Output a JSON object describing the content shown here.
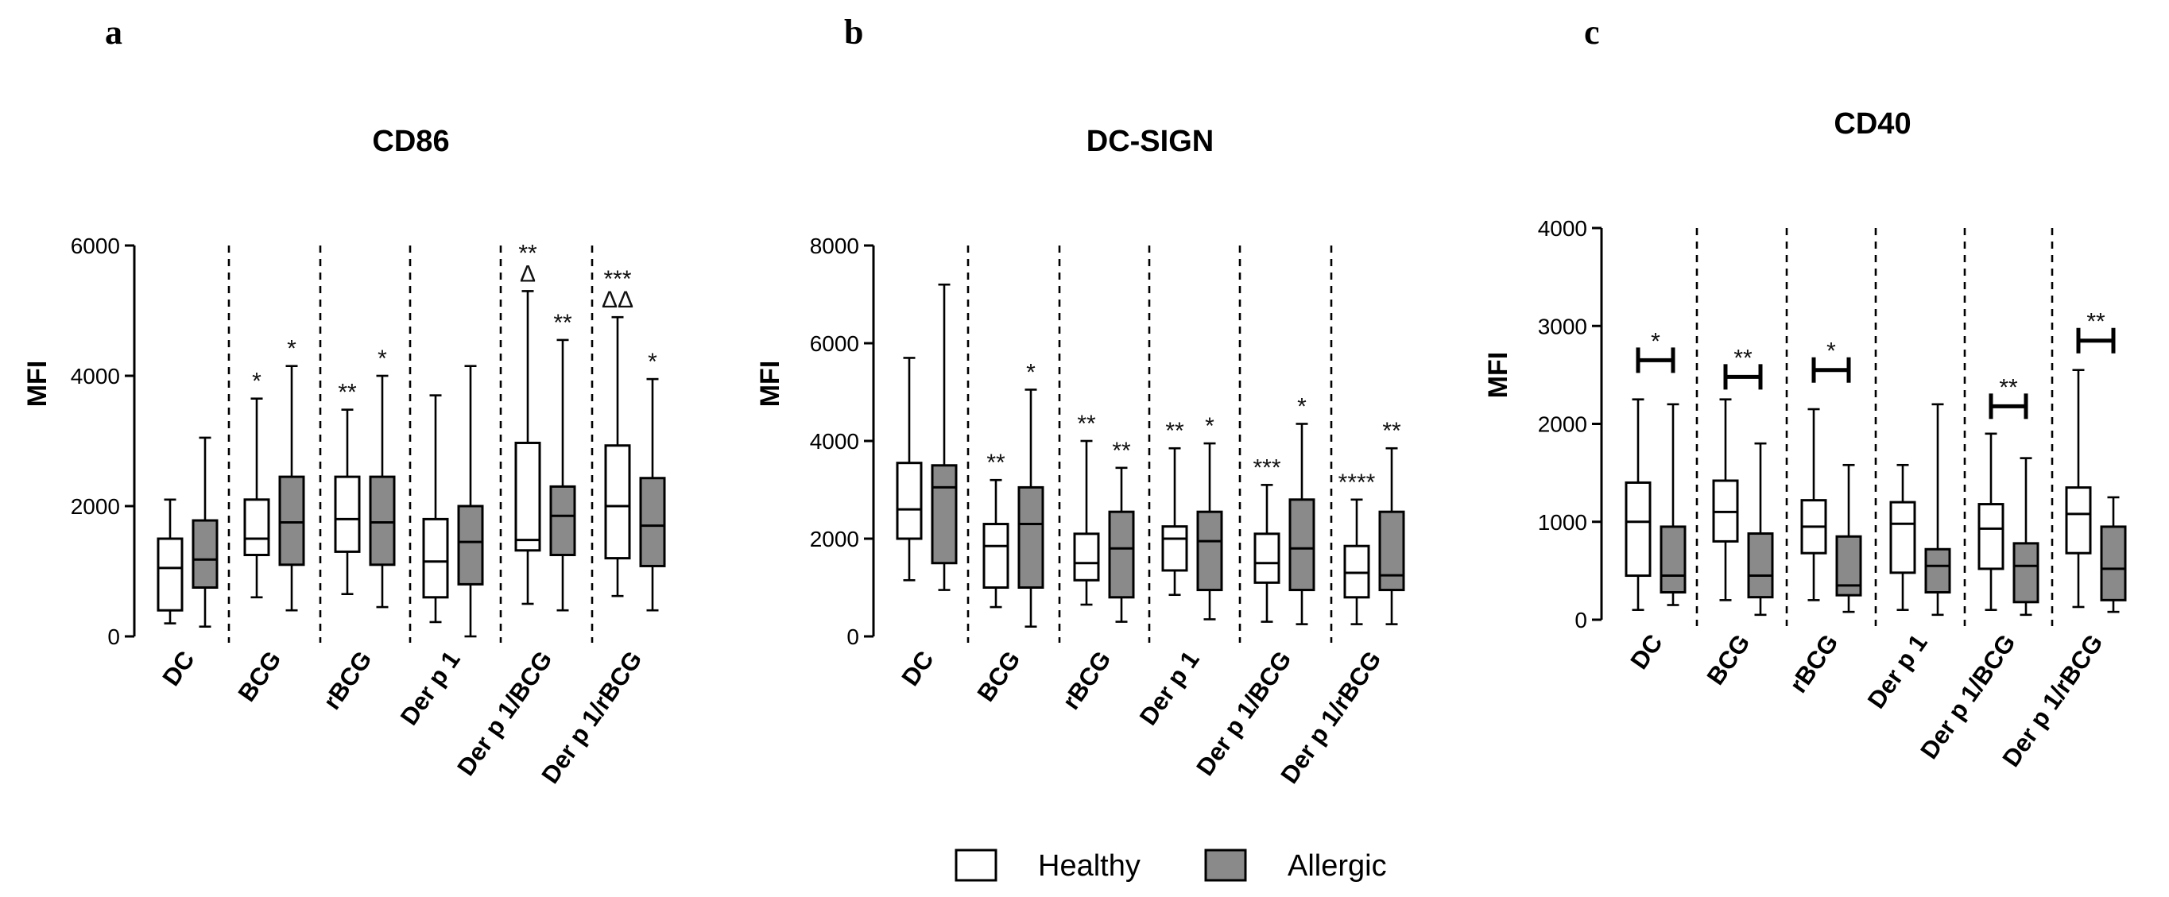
{
  "colors": {
    "healthy": "#ffffff",
    "allergic": "#8a8a8a",
    "stroke": "#000000"
  },
  "legend": [
    {
      "label": "Healthy",
      "color": "#ffffff"
    },
    {
      "label": "Allergic",
      "color": "#8a8a8a"
    }
  ],
  "chart_data": [
    {
      "type": "box",
      "panel": "a",
      "title": "CD86",
      "ylabel": "MFI",
      "ylim": [
        0,
        6000
      ],
      "yticks": [
        0,
        2000,
        4000,
        6000
      ],
      "categories": [
        "DC",
        "BCG",
        "rBCG",
        "Der p 1",
        "Der p 1/BCG",
        "Der p 1/rBCG"
      ],
      "series": [
        {
          "name": "Healthy",
          "boxes": [
            {
              "min": 200,
              "q1": 400,
              "median": 1050,
              "q3": 1500,
              "max": 2100,
              "sig": ""
            },
            {
              "min": 600,
              "q1": 1250,
              "median": 1500,
              "q3": 2100,
              "max": 3650,
              "sig": "*"
            },
            {
              "min": 650,
              "q1": 1300,
              "median": 1800,
              "q3": 2450,
              "max": 3480,
              "sig": "**"
            },
            {
              "min": 220,
              "q1": 600,
              "median": 1150,
              "q3": 1800,
              "max": 3700,
              "sig": ""
            },
            {
              "min": 500,
              "q1": 1320,
              "median": 1480,
              "q3": 2970,
              "max": 5300,
              "sig": "**\nΔ"
            },
            {
              "min": 620,
              "q1": 1200,
              "median": 2000,
              "q3": 2930,
              "max": 4900,
              "sig": "***\nΔΔ"
            }
          ]
        },
        {
          "name": "Allergic",
          "boxes": [
            {
              "min": 150,
              "q1": 750,
              "median": 1180,
              "q3": 1780,
              "max": 3050,
              "sig": ""
            },
            {
              "min": 400,
              "q1": 1100,
              "median": 1750,
              "q3": 2450,
              "max": 4150,
              "sig": "*"
            },
            {
              "min": 450,
              "q1": 1100,
              "median": 1750,
              "q3": 2450,
              "max": 4000,
              "sig": "*"
            },
            {
              "min": 0,
              "q1": 800,
              "median": 1450,
              "q3": 2000,
              "max": 4150,
              "sig": ""
            },
            {
              "min": 400,
              "q1": 1250,
              "median": 1850,
              "q3": 2300,
              "max": 4550,
              "sig": "**"
            },
            {
              "min": 400,
              "q1": 1080,
              "median": 1700,
              "q3": 2430,
              "max": 3950,
              "sig": "*"
            }
          ]
        }
      ]
    },
    {
      "type": "box",
      "panel": "b",
      "title": "DC-SIGN",
      "ylabel": "MFI",
      "ylim": [
        0,
        8000
      ],
      "yticks": [
        0,
        2000,
        4000,
        6000,
        8000
      ],
      "categories": [
        "DC",
        "BCG",
        "rBCG",
        "Der p 1",
        "Der p 1/BCG",
        "Der p 1/rBCG"
      ],
      "series": [
        {
          "name": "Healthy",
          "boxes": [
            {
              "min": 1150,
              "q1": 2000,
              "median": 2600,
              "q3": 3550,
              "max": 5700,
              "sig": ""
            },
            {
              "min": 600,
              "q1": 1000,
              "median": 1850,
              "q3": 2300,
              "max": 3200,
              "sig": "**"
            },
            {
              "min": 650,
              "q1": 1150,
              "median": 1500,
              "q3": 2100,
              "max": 4000,
              "sig": "**"
            },
            {
              "min": 850,
              "q1": 1350,
              "median": 2000,
              "q3": 2250,
              "max": 3850,
              "sig": "**"
            },
            {
              "min": 300,
              "q1": 1100,
              "median": 1500,
              "q3": 2100,
              "max": 3100,
              "sig": "***"
            },
            {
              "min": 250,
              "q1": 800,
              "median": 1300,
              "q3": 1850,
              "max": 2800,
              "sig": "****"
            }
          ]
        },
        {
          "name": "Allergic",
          "boxes": [
            {
              "min": 950,
              "q1": 1500,
              "median": 3050,
              "q3": 3500,
              "max": 7200,
              "sig": ""
            },
            {
              "min": 200,
              "q1": 1000,
              "median": 2300,
              "q3": 3050,
              "max": 5050,
              "sig": "*"
            },
            {
              "min": 300,
              "q1": 800,
              "median": 1800,
              "q3": 2550,
              "max": 3450,
              "sig": "**"
            },
            {
              "min": 350,
              "q1": 950,
              "median": 1950,
              "q3": 2550,
              "max": 3950,
              "sig": "*"
            },
            {
              "min": 250,
              "q1": 950,
              "median": 1800,
              "q3": 2800,
              "max": 4350,
              "sig": "*"
            },
            {
              "min": 250,
              "q1": 950,
              "median": 1250,
              "q3": 2550,
              "max": 3850,
              "sig": "**"
            }
          ]
        }
      ]
    },
    {
      "type": "box",
      "panel": "c",
      "title": "CD40",
      "ylabel": "MFI",
      "ylim": [
        0,
        4000
      ],
      "yticks": [
        0,
        1000,
        2000,
        3000,
        4000
      ],
      "categories": [
        "DC",
        "BCG",
        "rBCG",
        "Der p 1",
        "Der p 1/BCG",
        "Der p 1/rBCG"
      ],
      "series": [
        {
          "name": "Healthy",
          "boxes": [
            {
              "min": 100,
              "q1": 450,
              "median": 1000,
              "q3": 1400,
              "max": 2250,
              "sig": ""
            },
            {
              "min": 200,
              "q1": 800,
              "median": 1100,
              "q3": 1420,
              "max": 2250,
              "sig": ""
            },
            {
              "min": 200,
              "q1": 680,
              "median": 950,
              "q3": 1220,
              "max": 2150,
              "sig": ""
            },
            {
              "min": 100,
              "q1": 480,
              "median": 980,
              "q3": 1200,
              "max": 1580,
              "sig": ""
            },
            {
              "min": 100,
              "q1": 520,
              "median": 930,
              "q3": 1180,
              "max": 1900,
              "sig": ""
            },
            {
              "min": 130,
              "q1": 680,
              "median": 1080,
              "q3": 1350,
              "max": 2550,
              "sig": ""
            }
          ]
        },
        {
          "name": "Allergic",
          "boxes": [
            {
              "min": 150,
              "q1": 280,
              "median": 450,
              "q3": 950,
              "max": 2200,
              "sig": ""
            },
            {
              "min": 50,
              "q1": 230,
              "median": 450,
              "q3": 880,
              "max": 1800,
              "sig": ""
            },
            {
              "min": 80,
              "q1": 250,
              "median": 350,
              "q3": 850,
              "max": 1580,
              "sig": ""
            },
            {
              "min": 50,
              "q1": 280,
              "median": 550,
              "q3": 720,
              "max": 2200,
              "sig": ""
            },
            {
              "min": 50,
              "q1": 180,
              "median": 550,
              "q3": 780,
              "max": 1650,
              "sig": ""
            },
            {
              "min": 80,
              "q1": 200,
              "median": 520,
              "q3": 950,
              "max": 1250,
              "sig": ""
            }
          ]
        }
      ],
      "comparisons": [
        {
          "category": "DC",
          "y": 2650,
          "sig": "*"
        },
        {
          "category": "BCG",
          "y": 2480,
          "sig": "**"
        },
        {
          "category": "rBCG",
          "y": 2550,
          "sig": "*"
        },
        {
          "category": "Der p 1/BCG",
          "y": 2180,
          "sig": "**"
        },
        {
          "category": "Der p 1/rBCG",
          "y": 2850,
          "sig": "**"
        }
      ]
    }
  ]
}
